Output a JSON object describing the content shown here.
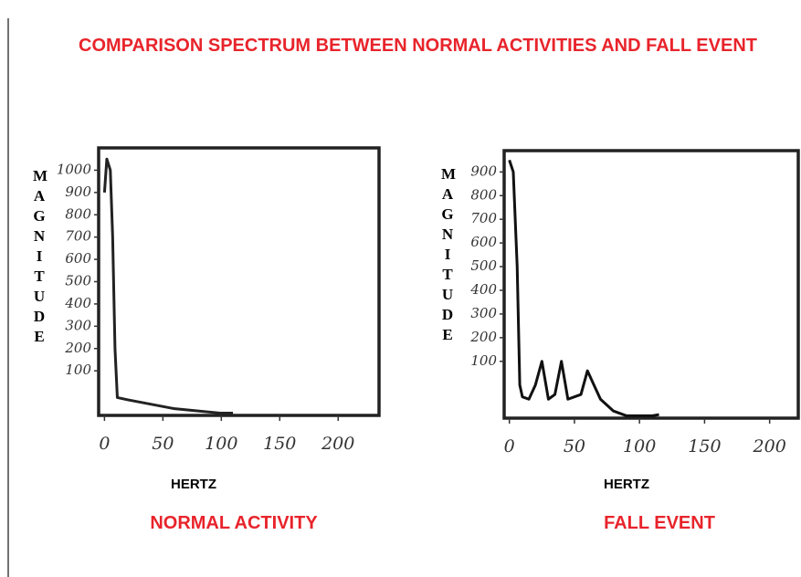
{
  "title": "COMPARISON SPECTRUM BETWEEN NORMAL ACTIVITIES AND FALL EVENT",
  "chart_data": [
    {
      "type": "line",
      "caption": "NORMAL ACTIVITY",
      "xlabel": "HERTZ",
      "ylabel": "MAGNITUDE",
      "color": "#222222",
      "x": [
        0,
        2,
        5,
        7,
        9,
        11,
        20,
        40,
        60,
        80,
        100,
        110
      ],
      "values": [
        900,
        1050,
        1000,
        700,
        200,
        -20,
        -30,
        -50,
        -70,
        -80,
        -90,
        -90
      ],
      "xlim": [
        -5,
        235
      ],
      "ylim": [
        -100,
        1100
      ],
      "xticks": [
        0,
        50,
        100,
        150,
        200
      ],
      "yticks": [
        100,
        200,
        300,
        400,
        500,
        600,
        700,
        800,
        900,
        1000
      ]
    },
    {
      "type": "line",
      "caption": "FALL EVENT",
      "xlabel": "HERTZ",
      "ylabel": "MAGNITUDE",
      "color": "#111111",
      "x": [
        0,
        3,
        6,
        8,
        10,
        15,
        20,
        25,
        30,
        35,
        40,
        45,
        55,
        60,
        65,
        70,
        80,
        90,
        110,
        115
      ],
      "values": [
        950,
        900,
        500,
        0,
        -50,
        -60,
        0,
        100,
        -60,
        -40,
        100,
        -60,
        -40,
        60,
        0,
        -60,
        -110,
        -130,
        -130,
        -125
      ],
      "xlim": [
        -4,
        222
      ],
      "ylim": [
        -140,
        990
      ],
      "xticks": [
        0,
        50,
        100,
        150,
        200
      ],
      "yticks": [
        100,
        200,
        300,
        400,
        500,
        600,
        700,
        800,
        900
      ]
    }
  ]
}
